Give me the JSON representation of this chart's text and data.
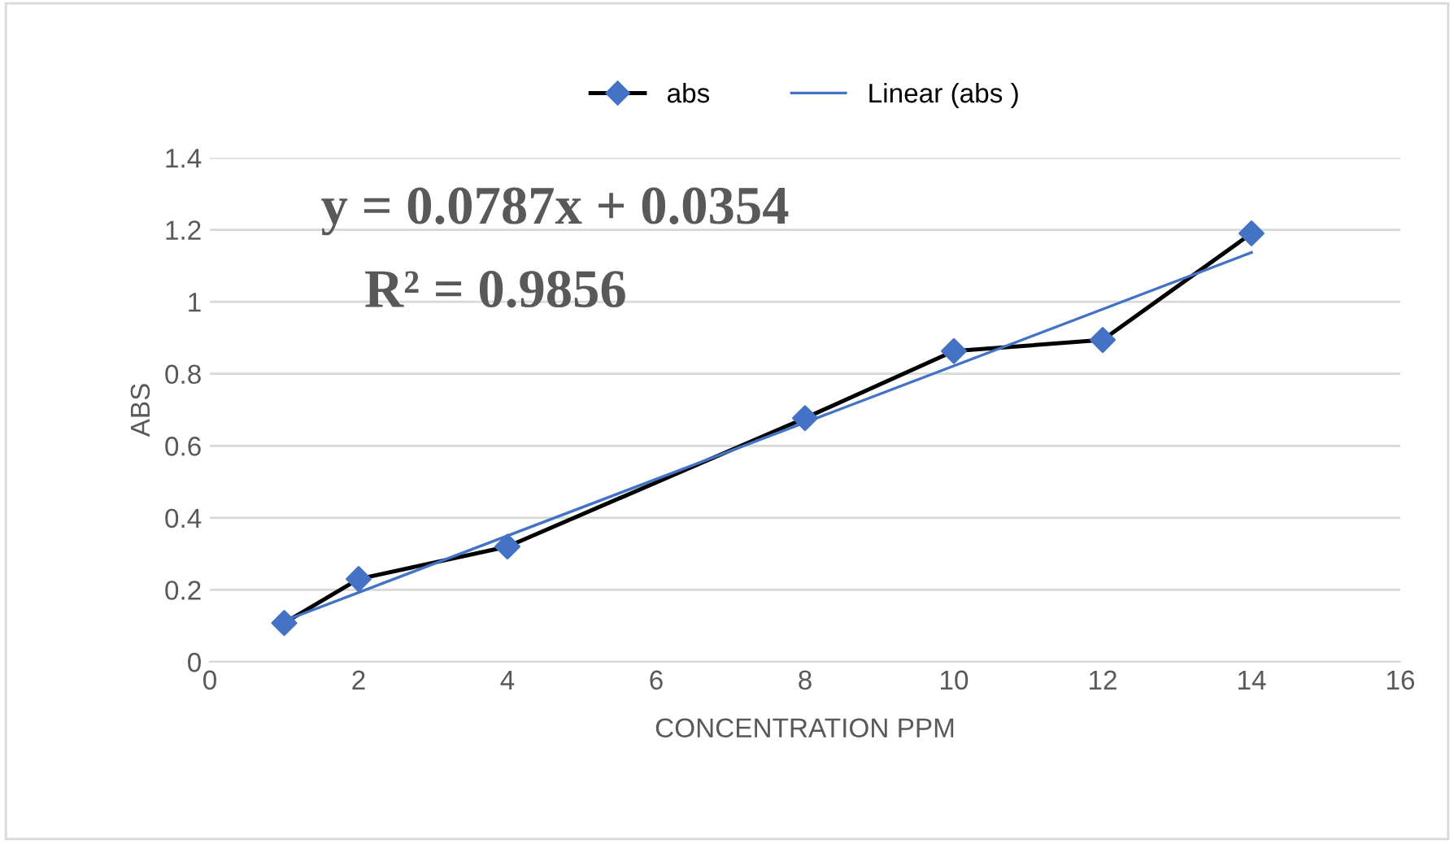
{
  "chart_data": {
    "type": "line",
    "xlabel": "CONCENTRATION PPM",
    "ylabel": "ABS",
    "x": [
      1,
      2,
      4,
      8,
      10,
      12,
      14
    ],
    "series": [
      {
        "name": "abs",
        "color": "#000000",
        "colors": [
          "#4472c4",
          "#4472c4",
          "#4472c4",
          "#4472c4",
          "#4472c4",
          "#4472c4",
          "#4472c4"
        ],
        "marker": "diamond",
        "values": [
          0.108,
          0.23,
          0.32,
          0.677,
          0.863,
          0.894,
          1.19
        ]
      },
      {
        "name": "Linear (abs )",
        "color": "#4472c4",
        "marker": "none",
        "x": [
          1,
          14
        ],
        "values": [
          0.114,
          1.137
        ]
      }
    ],
    "annotations": [
      "y = 0.0787x + 0.0354",
      "R² = 0.9856"
    ],
    "xlim": [
      0,
      16
    ],
    "xticks": [
      0,
      2,
      4,
      6,
      8,
      10,
      12,
      14,
      16
    ],
    "ylim": [
      0,
      1.4
    ],
    "yticks": [
      0,
      0.2,
      0.4,
      0.6,
      0.8,
      1,
      1.2,
      1.4
    ],
    "grid": "y",
    "legend": "top"
  }
}
